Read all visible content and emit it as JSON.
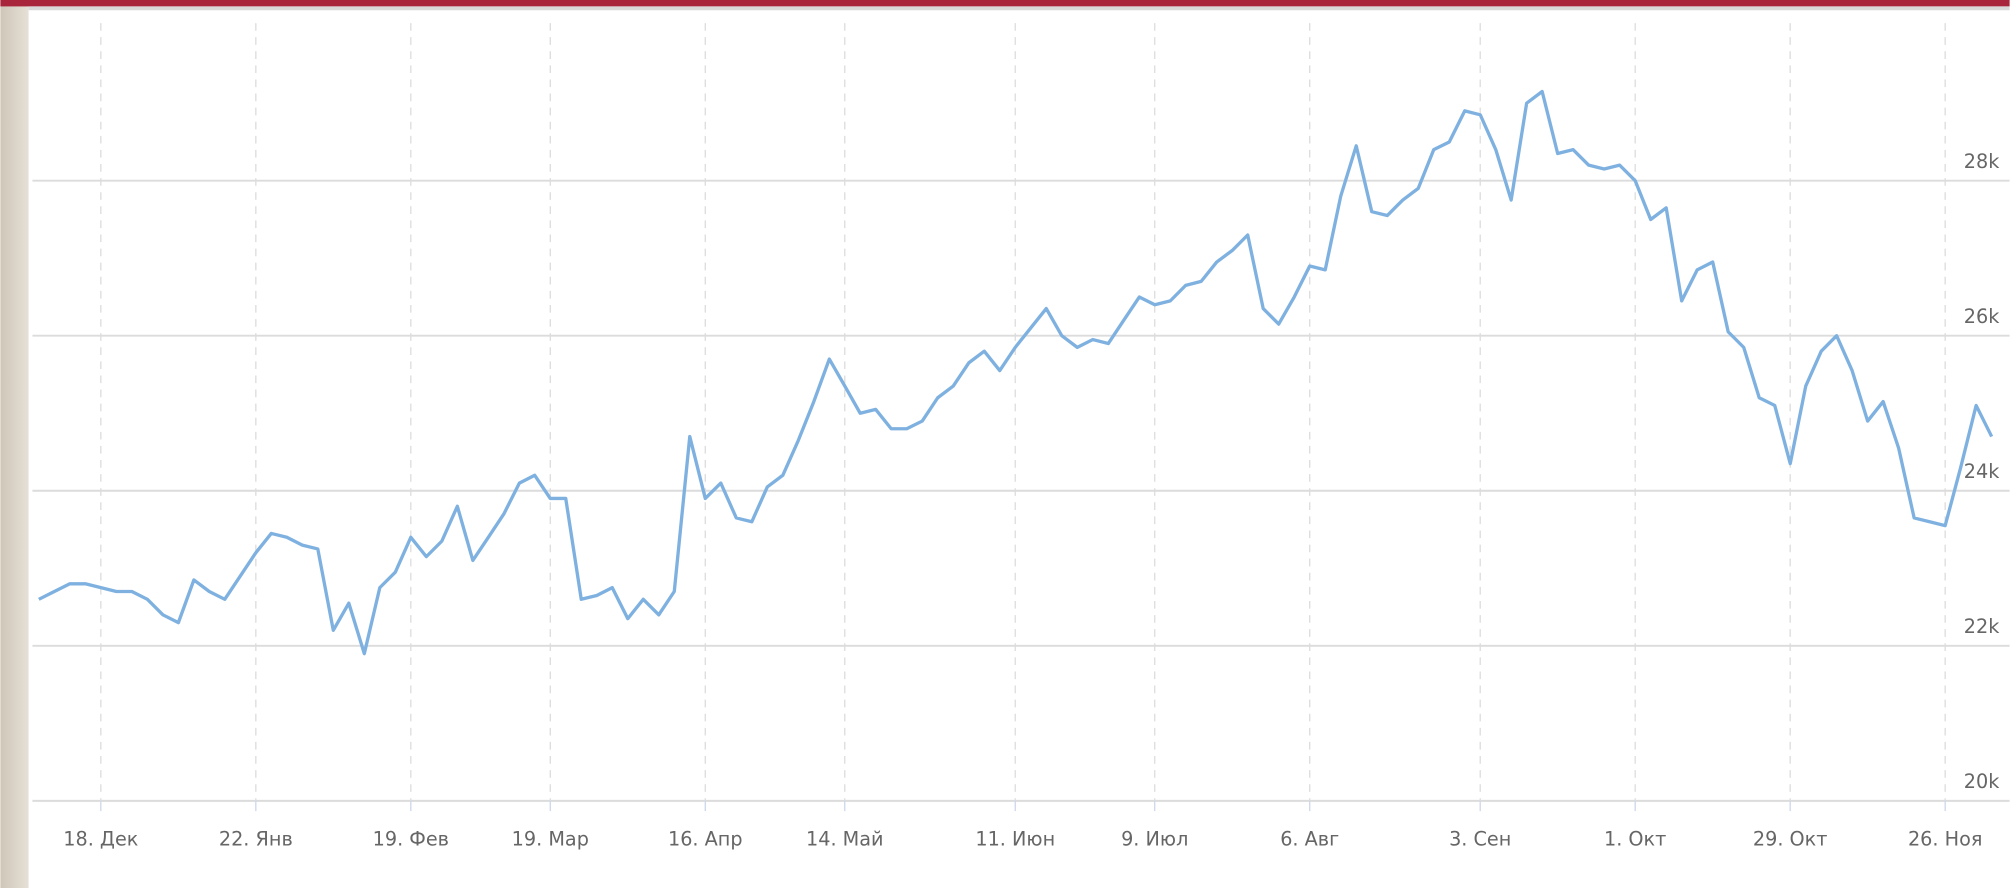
{
  "chart_data": {
    "type": "line",
    "categories": [
      null,
      null,
      null,
      null,
      "18. Дек",
      null,
      null,
      null,
      null,
      null,
      null,
      null,
      null,
      null,
      "22. Янв",
      null,
      null,
      null,
      null,
      null,
      null,
      null,
      null,
      null,
      "19. Фев",
      null,
      null,
      null,
      null,
      null,
      null,
      null,
      null,
      "19. Мар",
      null,
      null,
      null,
      null,
      null,
      null,
      null,
      null,
      null,
      "16. Апр",
      null,
      null,
      null,
      null,
      null,
      null,
      null,
      null,
      "14. Май",
      null,
      null,
      null,
      null,
      null,
      null,
      null,
      null,
      null,
      null,
      "11. Июн",
      null,
      null,
      null,
      null,
      null,
      null,
      null,
      null,
      "9. Июл",
      null,
      null,
      null,
      null,
      null,
      null,
      null,
      null,
      null,
      "6. Авг",
      null,
      null,
      null,
      null,
      null,
      null,
      null,
      null,
      null,
      null,
      "3. Сен",
      null,
      null,
      null,
      null,
      null,
      null,
      null,
      null,
      null,
      "1. Окт",
      null,
      null,
      null,
      null,
      null,
      null,
      null,
      null,
      null,
      "29. Окт",
      null,
      null,
      null,
      null,
      null,
      null,
      null,
      null,
      null,
      "26. Ноя",
      null,
      null,
      null
    ],
    "values": [
      22600,
      22700,
      22800,
      22800,
      22750,
      22700,
      22700,
      22600,
      22400,
      22300,
      22850,
      22700,
      22600,
      22900,
      23200,
      23450,
      23400,
      23300,
      23250,
      22200,
      22550,
      21900,
      22750,
      22950,
      23400,
      23150,
      23350,
      23800,
      23100,
      23400,
      23700,
      24100,
      24200,
      23900,
      23900,
      22600,
      22650,
      22750,
      22350,
      22600,
      22400,
      22700,
      24700,
      23900,
      24100,
      23650,
      23600,
      24050,
      24200,
      24650,
      25150,
      25700,
      25350,
      25000,
      25050,
      24800,
      24800,
      24900,
      25200,
      25350,
      25650,
      25800,
      25550,
      25850,
      26100,
      26350,
      26000,
      25850,
      25950,
      25900,
      26200,
      26500,
      26400,
      26450,
      26650,
      26700,
      26950,
      27100,
      27300,
      26350,
      26150,
      26500,
      26900,
      26850,
      27800,
      28450,
      27600,
      27550,
      27750,
      27900,
      28400,
      28500,
      28900,
      28850,
      28400,
      27750,
      29000,
      29150,
      28350,
      28400,
      28200,
      28150,
      28200,
      28000,
      27500,
      27650,
      26450,
      26850,
      26950,
      26050,
      25850,
      25200,
      25100,
      24350,
      25350,
      25800,
      26000,
      25550,
      24900,
      25150,
      24550,
      23650,
      23600,
      23550,
      24300,
      25100,
      24700
    ],
    "color": "#7fb1e0",
    "ylim": [
      20000,
      30000
    ],
    "yticks": [
      {
        "value": 20000,
        "label": "20k"
      },
      {
        "value": 22000,
        "label": "22k"
      },
      {
        "value": 24000,
        "label": "24k"
      },
      {
        "value": 26000,
        "label": "26k"
      },
      {
        "value": 28000,
        "label": "28k"
      }
    ],
    "grid": true
  }
}
